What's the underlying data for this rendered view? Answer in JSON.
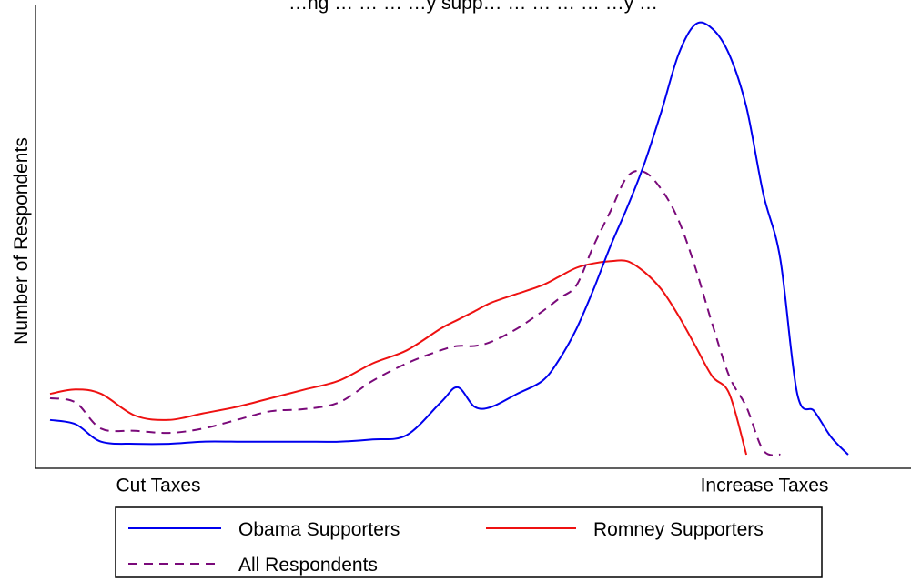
{
  "chart_data": {
    "type": "line",
    "title": "…ng … … … …y supp… … … … … …y …",
    "ylabel": "Number of Respondents",
    "xlabel": "",
    "x_tick_labels": [
      "Cut Taxes",
      "Increase Taxes"
    ],
    "x": [
      0,
      0.03,
      0.06,
      0.1,
      0.14,
      0.18,
      0.22,
      0.26,
      0.3,
      0.34,
      0.38,
      0.42,
      0.46,
      0.48,
      0.5,
      0.52,
      0.55,
      0.58,
      0.6,
      0.62,
      0.64,
      0.66,
      0.68,
      0.7,
      0.72,
      0.74,
      0.76,
      0.78,
      0.8,
      0.82,
      0.84,
      0.86,
      0.88,
      0.9,
      0.92,
      0.94,
      0.96,
      0.98,
      1.0
    ],
    "ylim": [
      0,
      100
    ],
    "series": [
      {
        "name": "Obama Supporters",
        "color": "#0000ee",
        "dash": "solid",
        "values": [
          8,
          7,
          3,
          2.5,
          2.5,
          3,
          3,
          3,
          3,
          3,
          3.5,
          4.5,
          12,
          15.5,
          11,
          11,
          14,
          17,
          22,
          29,
          38,
          48,
          57,
          67,
          79,
          92,
          99,
          98,
          92,
          80,
          60,
          45,
          14,
          10,
          4,
          0,
          0,
          0,
          0
        ]
      },
      {
        "name": "Romney Supporters",
        "color": "#ee1111",
        "dash": "solid",
        "values": [
          14,
          15,
          14,
          9,
          8,
          9.5,
          11,
          13,
          15,
          17,
          21,
          24,
          29,
          31,
          33,
          35,
          37,
          39,
          41,
          43,
          44,
          44.5,
          44.5,
          42,
          38,
          32,
          25,
          18,
          14,
          0,
          0,
          0,
          0,
          0,
          0,
          0,
          0,
          0,
          0
        ]
      },
      {
        "name": "All Respondents",
        "color": "#7a0a7a",
        "dash": "dashed",
        "values": [
          13,
          12,
          6,
          5.5,
          5,
          6,
          8,
          10,
          10.5,
          12,
          17,
          21,
          24,
          25,
          25,
          26,
          29,
          33,
          36,
          39,
          48,
          56,
          64,
          65,
          61,
          54,
          43,
          30,
          18,
          11,
          1,
          0,
          0,
          0,
          0,
          0,
          0,
          0,
          0
        ]
      }
    ],
    "legend": {
      "position": "bottom",
      "entries": [
        "Obama Supporters",
        "Romney Supporters",
        "All Respondents"
      ]
    },
    "grid": false
  }
}
